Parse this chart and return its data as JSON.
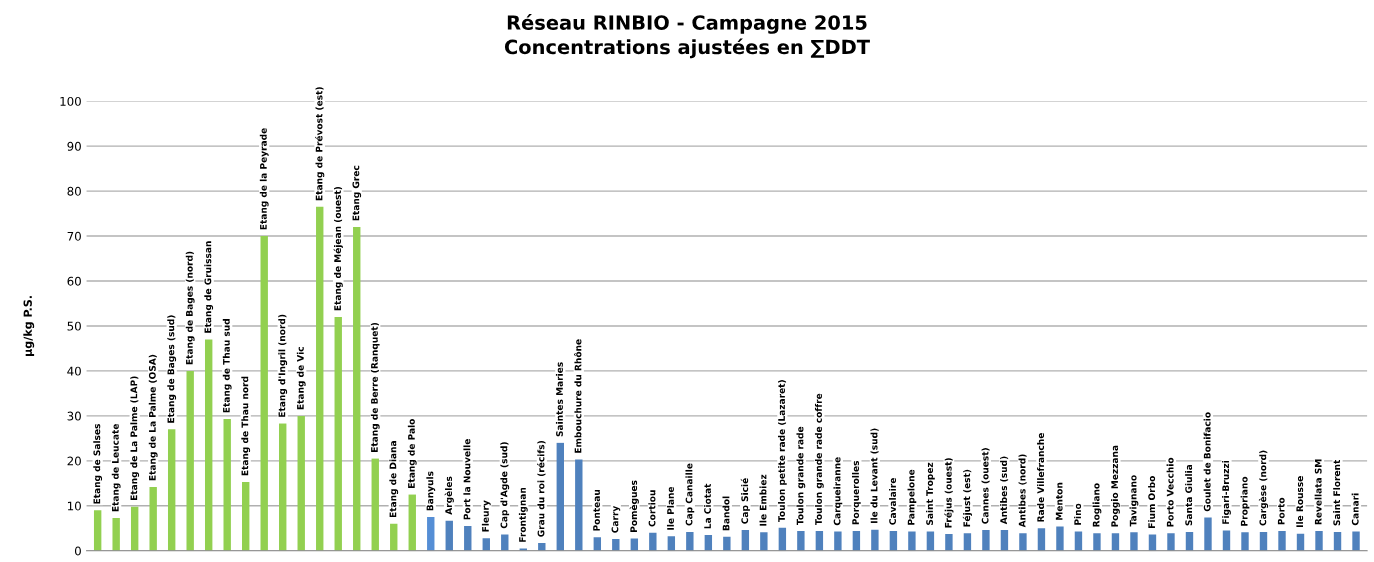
{
  "chart_data": {
    "type": "bar",
    "title": "Réseau RINBIO - Campagne 2015\nConcentrations ajustées en ∑DDT",
    "ylabel": "µg/kg P.S.",
    "categories": [
      "Etang de Salses",
      "Etang de Leucate",
      "Etang de La Palme (LAP)",
      "Etang de La Palme (OSA)",
      "Etang de Bages (sud)",
      "Etang de Bages (nord)",
      "Etang de Gruissan",
      "Etang de Thau sud",
      "Etang de Thau nord",
      "Etang de la Peyrade",
      "Etang d'Ingril (nord)",
      "Etang de Vic",
      "Etang de Prévost (est)",
      "Etang de Méjean (ouest)",
      "Etang Grec",
      "Etang de Berre (Ranquet)",
      "Etang de Diana",
      "Etang de Palo",
      "Banyuls",
      "Argèles",
      "Port la Nouvelle",
      "Fleury",
      "Cap d'Agde (sud)",
      "Frontignan",
      "Grau du roi (récifs)",
      "Saintes Maries",
      "Embouchure du Rhône",
      "Ponteau",
      "Carry",
      "Pomègues",
      "Cortiou",
      "Ile Plane",
      "Cap Canaille",
      "La Ciotat",
      "Bandol",
      "Cap Sicié",
      "Ile Embiez",
      "Toulon petite rade (Lazaret)",
      "Toulon grande rade",
      "Toulon grande rade coffre",
      "Carqueiranne",
      "Porquerolles",
      "Ile du Levant (sud)",
      "Cavalaire",
      "Pampelone",
      "Saint Tropez",
      "Fréjus (ouest)",
      "Féjust (est)",
      "Cannes (ouest)",
      "Antibes (sud)",
      "Antibes (nord)",
      "Rade Villefranche",
      "Menton",
      "Pino",
      "Rogliano",
      "Poggio Mezzana",
      "Tavignano",
      "Fium Orbo",
      "Porto Vecchio",
      "Santa Giulia",
      "Goulet de Bonifacio",
      "Figari-Bruzzi",
      "Propriano",
      "Cargèse (nord)",
      "Porto",
      "Ile Rousse",
      "Revellata SM",
      "Saint Florent",
      "Canari"
    ],
    "values": [
      9,
      7.3,
      9.8,
      14.2,
      27,
      40,
      47,
      29.3,
      15.3,
      70,
      28.3,
      30,
      76.5,
      52,
      72,
      20.5,
      6,
      12.5,
      7.5,
      6.7,
      5.5,
      2.8,
      3.6,
      0.5,
      1.7,
      24,
      20.3,
      3,
      2.6,
      2.7,
      4,
      3.2,
      4.2,
      3.5,
      3.1,
      4.6,
      4.1,
      5.1,
      4.4,
      4.4,
      4.3,
      4.4,
      4.7,
      4.4,
      4.3,
      4.3,
      3.7,
      3.9,
      4.6,
      4.6,
      3.9,
      5,
      5.4,
      4.3,
      3.9,
      3.9,
      4.1,
      3.6,
      3.9,
      4.2,
      7.4,
      4.5,
      4.1,
      4.2,
      4.4,
      3.8,
      4.4,
      4.2,
      4.3
    ],
    "colors": [
      "#92d050",
      "#92d050",
      "#92d050",
      "#92d050",
      "#92d050",
      "#92d050",
      "#92d050",
      "#92d050",
      "#92d050",
      "#92d050",
      "#92d050",
      "#92d050",
      "#92d050",
      "#92d050",
      "#92d050",
      "#92d050",
      "#92d050",
      "#92d050",
      "#558ed5",
      "#4f81bd",
      "#4f81bd",
      "#4f81bd",
      "#4f81bd",
      "#4f81bd",
      "#4f81bd",
      "#4f81bd",
      "#4f81bd",
      "#4f81bd",
      "#4f81bd",
      "#4f81bd",
      "#4f81bd",
      "#4f81bd",
      "#4f81bd",
      "#4f81bd",
      "#4f81bd",
      "#4f81bd",
      "#4f81bd",
      "#4f81bd",
      "#4f81bd",
      "#4f81bd",
      "#4f81bd",
      "#4f81bd",
      "#4f81bd",
      "#4f81bd",
      "#4f81bd",
      "#4f81bd",
      "#4f81bd",
      "#4f81bd",
      "#4f81bd",
      "#4f81bd",
      "#4f81bd",
      "#4f81bd",
      "#4f81bd",
      "#4f81bd",
      "#4f81bd",
      "#4f81bd",
      "#4f81bd",
      "#4f81bd",
      "#4f81bd",
      "#4f81bd",
      "#4f81bd",
      "#4f81bd",
      "#4f81bd",
      "#4f81bd",
      "#4f81bd",
      "#4f81bd",
      "#4f81bd",
      "#4f81bd",
      "#4f81bd"
    ],
    "ylim": [
      0,
      100
    ],
    "yticks": [
      0,
      10,
      20,
      30,
      40,
      50,
      60,
      70,
      80,
      90,
      100
    ],
    "grid": "y"
  }
}
